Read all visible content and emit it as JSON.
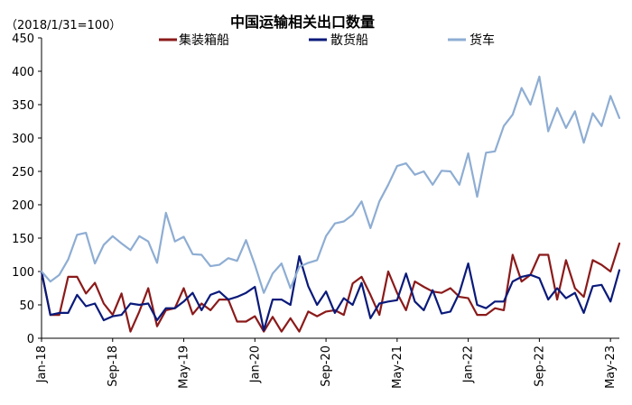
{
  "chart_data": {
    "type": "line",
    "title": "中国运输相关出口数量",
    "unit_label": "（2018/1/31=100）",
    "ylim": [
      0,
      450
    ],
    "y_ticks": [
      0,
      50,
      100,
      150,
      200,
      250,
      300,
      350,
      400,
      450
    ],
    "x_ticks": [
      "Jan-18",
      "Sep-18",
      "May-19",
      "Jan-20",
      "Sep-20",
      "May-21",
      "Jan-22",
      "Sep-22",
      "May-23"
    ],
    "x_start": "2018-01",
    "x": [
      "Jan-18",
      "Feb-18",
      "Mar-18",
      "Apr-18",
      "May-18",
      "Jun-18",
      "Jul-18",
      "Aug-18",
      "Sep-18",
      "Oct-18",
      "Nov-18",
      "Dec-18",
      "Jan-19",
      "Feb-19",
      "Mar-19",
      "Apr-19",
      "May-19",
      "Jun-19",
      "Jul-19",
      "Aug-19",
      "Sep-19",
      "Oct-19",
      "Nov-19",
      "Dec-19",
      "Jan-20",
      "Feb-20",
      "Mar-20",
      "Apr-20",
      "May-20",
      "Jun-20",
      "Jul-20",
      "Aug-20",
      "Sep-20",
      "Oct-20",
      "Nov-20",
      "Dec-20",
      "Jan-21",
      "Feb-21",
      "Mar-21",
      "Apr-21",
      "May-21",
      "Jun-21",
      "Jul-21",
      "Aug-21",
      "Sep-21",
      "Oct-21",
      "Nov-21",
      "Dec-21",
      "Jan-22",
      "Feb-22",
      "Mar-22",
      "Apr-22",
      "May-22",
      "Jun-22",
      "Jul-22",
      "Aug-22",
      "Sep-22",
      "Oct-22",
      "Nov-22",
      "Dec-22",
      "Jan-23",
      "Feb-23",
      "Mar-23",
      "Apr-23",
      "May-23",
      "Jun-23"
    ],
    "grid": false,
    "legend_position": "top",
    "series": [
      {
        "name": "集装箱船",
        "color": "#8b1a1a",
        "values": [
          100,
          35,
          35,
          92,
          92,
          67,
          83,
          52,
          35,
          67,
          10,
          40,
          75,
          18,
          42,
          45,
          75,
          36,
          52,
          42,
          58,
          58,
          25,
          25,
          33,
          10,
          32,
          10,
          30,
          10,
          40,
          33,
          40,
          42,
          35,
          82,
          92,
          65,
          35,
          100,
          68,
          42,
          85,
          77,
          70,
          68,
          75,
          62,
          60,
          35,
          35,
          45,
          42,
          125,
          85,
          95,
          125,
          125,
          58,
          117,
          75,
          62,
          117,
          110,
          100,
          142
        ]
      },
      {
        "name": "散货船",
        "color": "#0a1a7a",
        "values": [
          100,
          35,
          38,
          38,
          65,
          48,
          52,
          27,
          33,
          35,
          52,
          50,
          52,
          27,
          45,
          45,
          55,
          68,
          42,
          65,
          70,
          58,
          62,
          68,
          77,
          12,
          58,
          58,
          50,
          123,
          78,
          50,
          70,
          38,
          60,
          50,
          83,
          30,
          52,
          55,
          57,
          97,
          55,
          42,
          72,
          37,
          40,
          68,
          112,
          50,
          45,
          55,
          55,
          85,
          92,
          95,
          90,
          58,
          75,
          60,
          68,
          38,
          78,
          80,
          55,
          102
        ]
      },
      {
        "name": "货车",
        "color": "#8eadd3",
        "values": [
          100,
          85,
          95,
          118,
          155,
          158,
          112,
          140,
          153,
          142,
          132,
          153,
          145,
          113,
          188,
          145,
          152,
          126,
          125,
          108,
          110,
          120,
          116,
          147,
          110,
          68,
          97,
          112,
          75,
          107,
          113,
          117,
          153,
          172,
          175,
          185,
          205,
          165,
          205,
          230,
          258,
          262,
          245,
          250,
          230,
          251,
          250,
          230,
          277,
          212,
          278,
          280,
          318,
          335,
          375,
          350,
          392,
          310,
          345,
          315,
          340,
          293,
          337,
          318,
          363,
          330
        ]
      }
    ]
  }
}
